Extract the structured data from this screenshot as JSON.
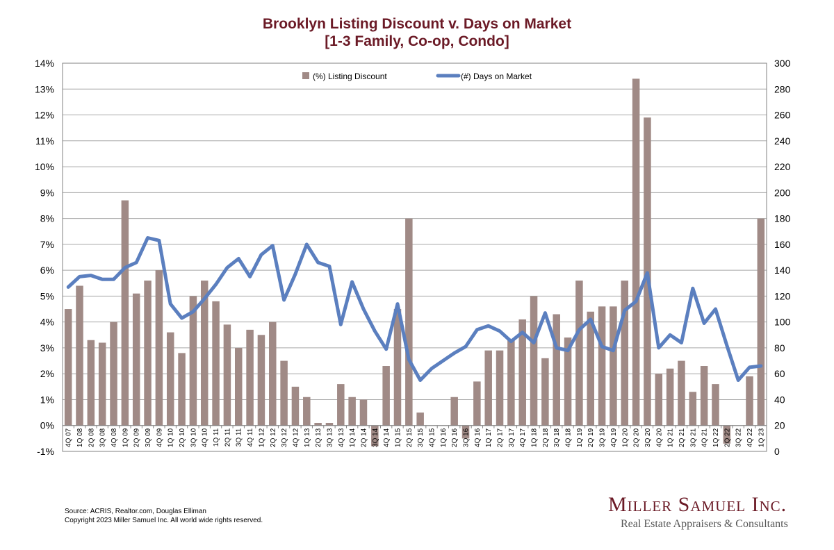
{
  "chart_data": {
    "type": "bar+line",
    "title": "Brooklyn Listing Discount v. Days on Market",
    "subtitle": "[1-3 Family, Co-op, Condo]",
    "categories": [
      "4Q 07",
      "1Q 08",
      "2Q 08",
      "3Q 08",
      "4Q 08",
      "1Q 09",
      "2Q 09",
      "3Q 09",
      "4Q 09",
      "1Q 10",
      "2Q 10",
      "3Q 10",
      "4Q 10",
      "1Q 11",
      "2Q 11",
      "3Q 11",
      "4Q 11",
      "1Q 12",
      "2Q 12",
      "3Q 12",
      "4Q 12",
      "1Q 13",
      "2Q 13",
      "3Q 13",
      "4Q 13",
      "1Q 14",
      "2Q 14",
      "3Q 14",
      "4Q 14",
      "1Q 15",
      "2Q 15",
      "3Q 15",
      "4Q 15",
      "1Q 16",
      "2Q 16",
      "3Q 16",
      "4Q 16",
      "1Q 17",
      "2Q 17",
      "3Q 17",
      "4Q 17",
      "1Q 18",
      "2Q 18",
      "3Q 18",
      "4Q 18",
      "1Q 19",
      "2Q 19",
      "3Q 19",
      "4Q 19",
      "1Q 20",
      "2Q 20",
      "3Q 20",
      "4Q 20",
      "1Q 21",
      "2Q 21",
      "3Q 21",
      "4Q 21",
      "1Q 22",
      "2Q 22",
      "3Q 22",
      "4Q 22",
      "1Q 23"
    ],
    "series": [
      {
        "name": "(%) Listing Discount",
        "type": "bar",
        "axis": "left",
        "color": "#a08a86",
        "values": [
          4.5,
          5.4,
          3.3,
          3.2,
          4.0,
          8.7,
          5.1,
          5.6,
          6.0,
          3.6,
          2.8,
          5.0,
          5.6,
          4.8,
          3.9,
          3.0,
          3.7,
          3.5,
          4.0,
          2.5,
          1.5,
          1.1,
          0.1,
          0.1,
          1.6,
          1.1,
          1.0,
          -0.8,
          2.3,
          4.5,
          8.0,
          0.5,
          0,
          0,
          1.1,
          -0.5,
          1.7,
          2.9,
          2.9,
          3.3,
          4.1,
          5.0,
          2.6,
          4.3,
          3.4,
          5.6,
          4.4,
          4.6,
          4.6,
          5.6,
          13.4,
          11.9,
          2.0,
          2.2,
          2.5,
          1.3,
          2.3,
          1.6,
          -0.7,
          0,
          1.9,
          8.0
        ]
      },
      {
        "name": "(#) Days on Market",
        "type": "line",
        "axis": "right",
        "color": "#5b7fbf",
        "values": [
          127,
          135,
          136,
          133,
          133,
          142,
          146,
          165,
          163,
          114,
          103,
          108,
          118,
          129,
          142,
          149,
          135,
          152,
          159,
          117,
          137,
          160,
          146,
          143,
          98,
          131,
          110,
          93,
          79,
          114,
          71,
          55,
          64,
          70,
          76,
          81,
          94,
          97,
          93,
          85,
          92,
          84,
          107,
          80,
          78,
          94,
          102,
          81,
          78,
          109,
          116,
          138,
          80,
          90,
          84,
          126,
          99,
          110,
          82,
          55,
          65,
          66
        ]
      }
    ],
    "y_left": {
      "min": -1,
      "max": 14,
      "step": 1,
      "ticks": [
        "-1%",
        "0%",
        "1%",
        "2%",
        "3%",
        "4%",
        "5%",
        "6%",
        "7%",
        "8%",
        "9%",
        "10%",
        "11%",
        "12%",
        "13%",
        "14%"
      ]
    },
    "y_right": {
      "min": 0,
      "max": 300,
      "step": 20,
      "ticks": [
        "0",
        "20",
        "40",
        "60",
        "80",
        "100",
        "120",
        "140",
        "160",
        "180",
        "200",
        "220",
        "240",
        "260",
        "280",
        "300"
      ]
    },
    "grid": true,
    "legend": "top-center"
  },
  "footer": {
    "source": "Source: ACRIS, Realtor.com, Douglas Elliman",
    "copyright": "Copyright 2023 Miller Samuel Inc.  All world wide rights reserved."
  },
  "logo": {
    "name": "Miller Samuel Inc.",
    "tagline": "Real Estate Appraisers & Consultants"
  },
  "colors": {
    "title": "#6b1a26",
    "bar": "#a08a86",
    "line": "#5b7fbf",
    "grid": "#a6a6a6"
  }
}
